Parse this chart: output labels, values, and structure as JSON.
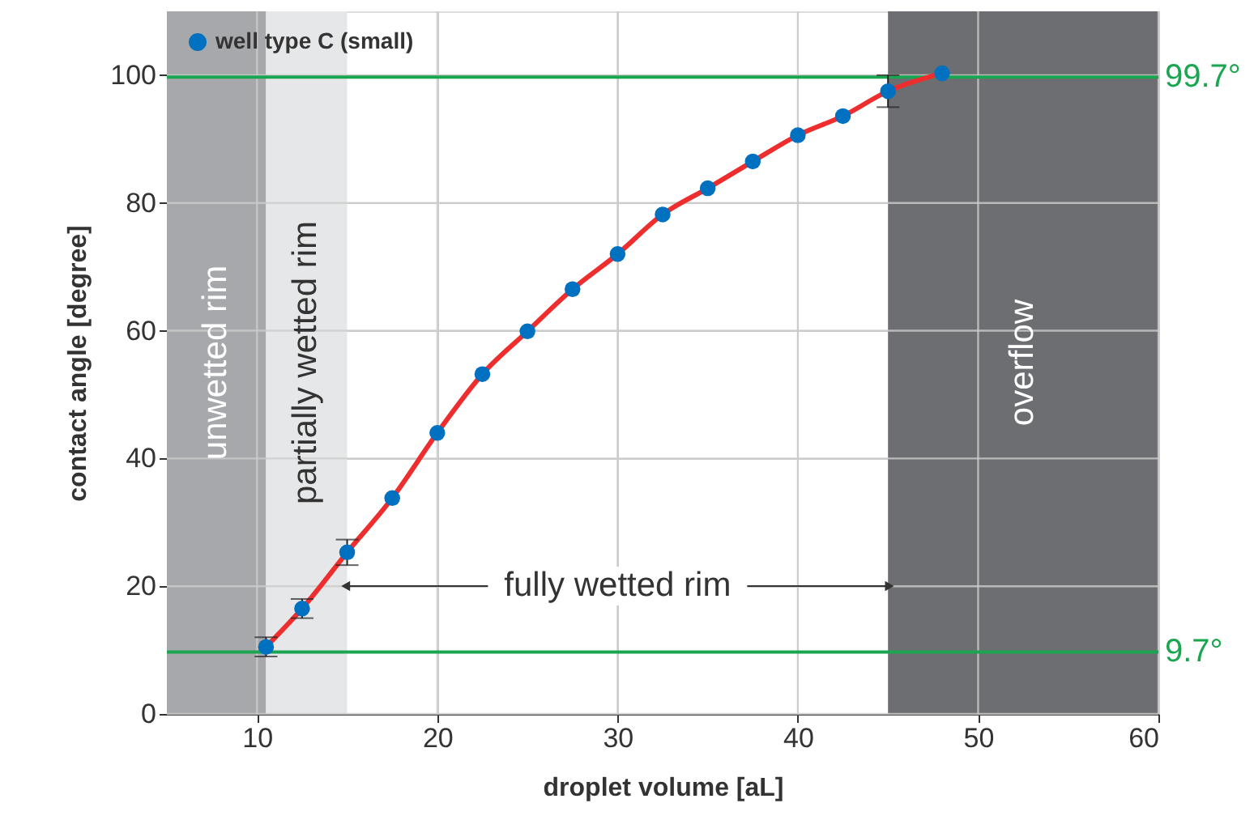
{
  "chart_data": {
    "type": "scatter",
    "xlabel": "droplet volume [aL]",
    "ylabel": "contact angle  [degree]",
    "x": [
      10.5,
      12.5,
      15,
      17.5,
      20,
      22.5,
      25,
      27.5,
      30,
      32.5,
      35,
      37.5,
      40,
      42.5,
      45,
      48
    ],
    "series": [
      {
        "name": "well type C (small)",
        "type": "scatter",
        "color": "#0070c0",
        "marker": "circle",
        "values": [
          10.5,
          16.5,
          25.3,
          33.8,
          44,
          53.2,
          59.9,
          66.5,
          72,
          78.2,
          82.3,
          86.5,
          90.6,
          93.6,
          97.5,
          100.3
        ],
        "errors": [
          1.5,
          1.5,
          2,
          null,
          null,
          null,
          null,
          null,
          null,
          null,
          null,
          null,
          null,
          null,
          2.5,
          null
        ]
      },
      {
        "type": "line",
        "color": "#ee2e2e",
        "line_style": "solid",
        "values": [
          10.5,
          16.5,
          25.3,
          33.8,
          44,
          53.2,
          59.9,
          66.5,
          72,
          78.2,
          82.3,
          86.5,
          90.6,
          93.6,
          97.5,
          100.3
        ]
      }
    ],
    "xlim": [
      5,
      60
    ],
    "xticks": [
      10,
      20,
      30,
      40,
      50,
      60
    ],
    "ylim": [
      0,
      110
    ],
    "yticks": [
      0,
      20,
      40,
      60,
      80,
      100
    ],
    "grid": true,
    "legend": "top left",
    "bands": [
      {
        "axis": "x",
        "from": 5,
        "to": 10.5,
        "label": "unwetted rim",
        "color": "#a7a8ab"
      },
      {
        "axis": "x",
        "from": 10.5,
        "to": 15,
        "label": "partially wetted rim",
        "color": "#e6e7e8"
      },
      {
        "axis": "x",
        "from": 45,
        "to": 60,
        "label": "overflow",
        "color": "#6d6e71"
      }
    ],
    "ref_lines": [
      {
        "axis": "y",
        "value": 9.7,
        "label": "9.7°",
        "color": "#1aa550"
      },
      {
        "axis": "y",
        "value": 99.7,
        "label": "99.7°",
        "color": "#1aa550"
      }
    ],
    "annotations": [
      "fully wetted rim"
    ]
  }
}
